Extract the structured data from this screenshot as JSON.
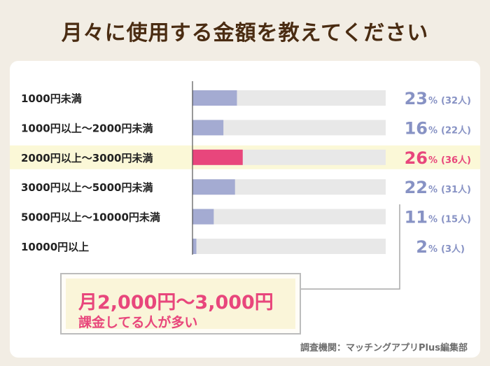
{
  "title": "月々に使用する金額を教えてください",
  "chart_data": {
    "type": "bar",
    "orientation": "horizontal",
    "categories": [
      "1000円未満",
      "1000円以上〜2000円未満",
      "2000円以上〜3000円未満",
      "3000円以上〜5000円未満",
      "5000円以上〜10000円未満",
      "10000円以上"
    ],
    "values": [
      23,
      16,
      26,
      22,
      11,
      2
    ],
    "counts": [
      32,
      22,
      36,
      31,
      15,
      3
    ],
    "value_labels": [
      "23",
      "16",
      "26",
      "22",
      "11",
      "2"
    ],
    "count_labels": [
      "(32人)",
      "(22人)",
      "(36人)",
      "(31人)",
      "(15人)",
      "(3人)"
    ],
    "unit": "%",
    "xlim": [
      0,
      100
    ],
    "highlight_index": 2
  },
  "callout": {
    "line1": "月2,000円〜3,000円",
    "line2": "課金してる人が多い"
  },
  "source": "調査機関：マッチングアプリPlus編集部",
  "colors": {
    "bar": "#a4abd2",
    "bar_highlight": "#e8467c",
    "track": "#e8e8e8",
    "row_highlight": "#fbf8d7",
    "value_text": "#8792c4",
    "title_text": "#4a2c12"
  }
}
